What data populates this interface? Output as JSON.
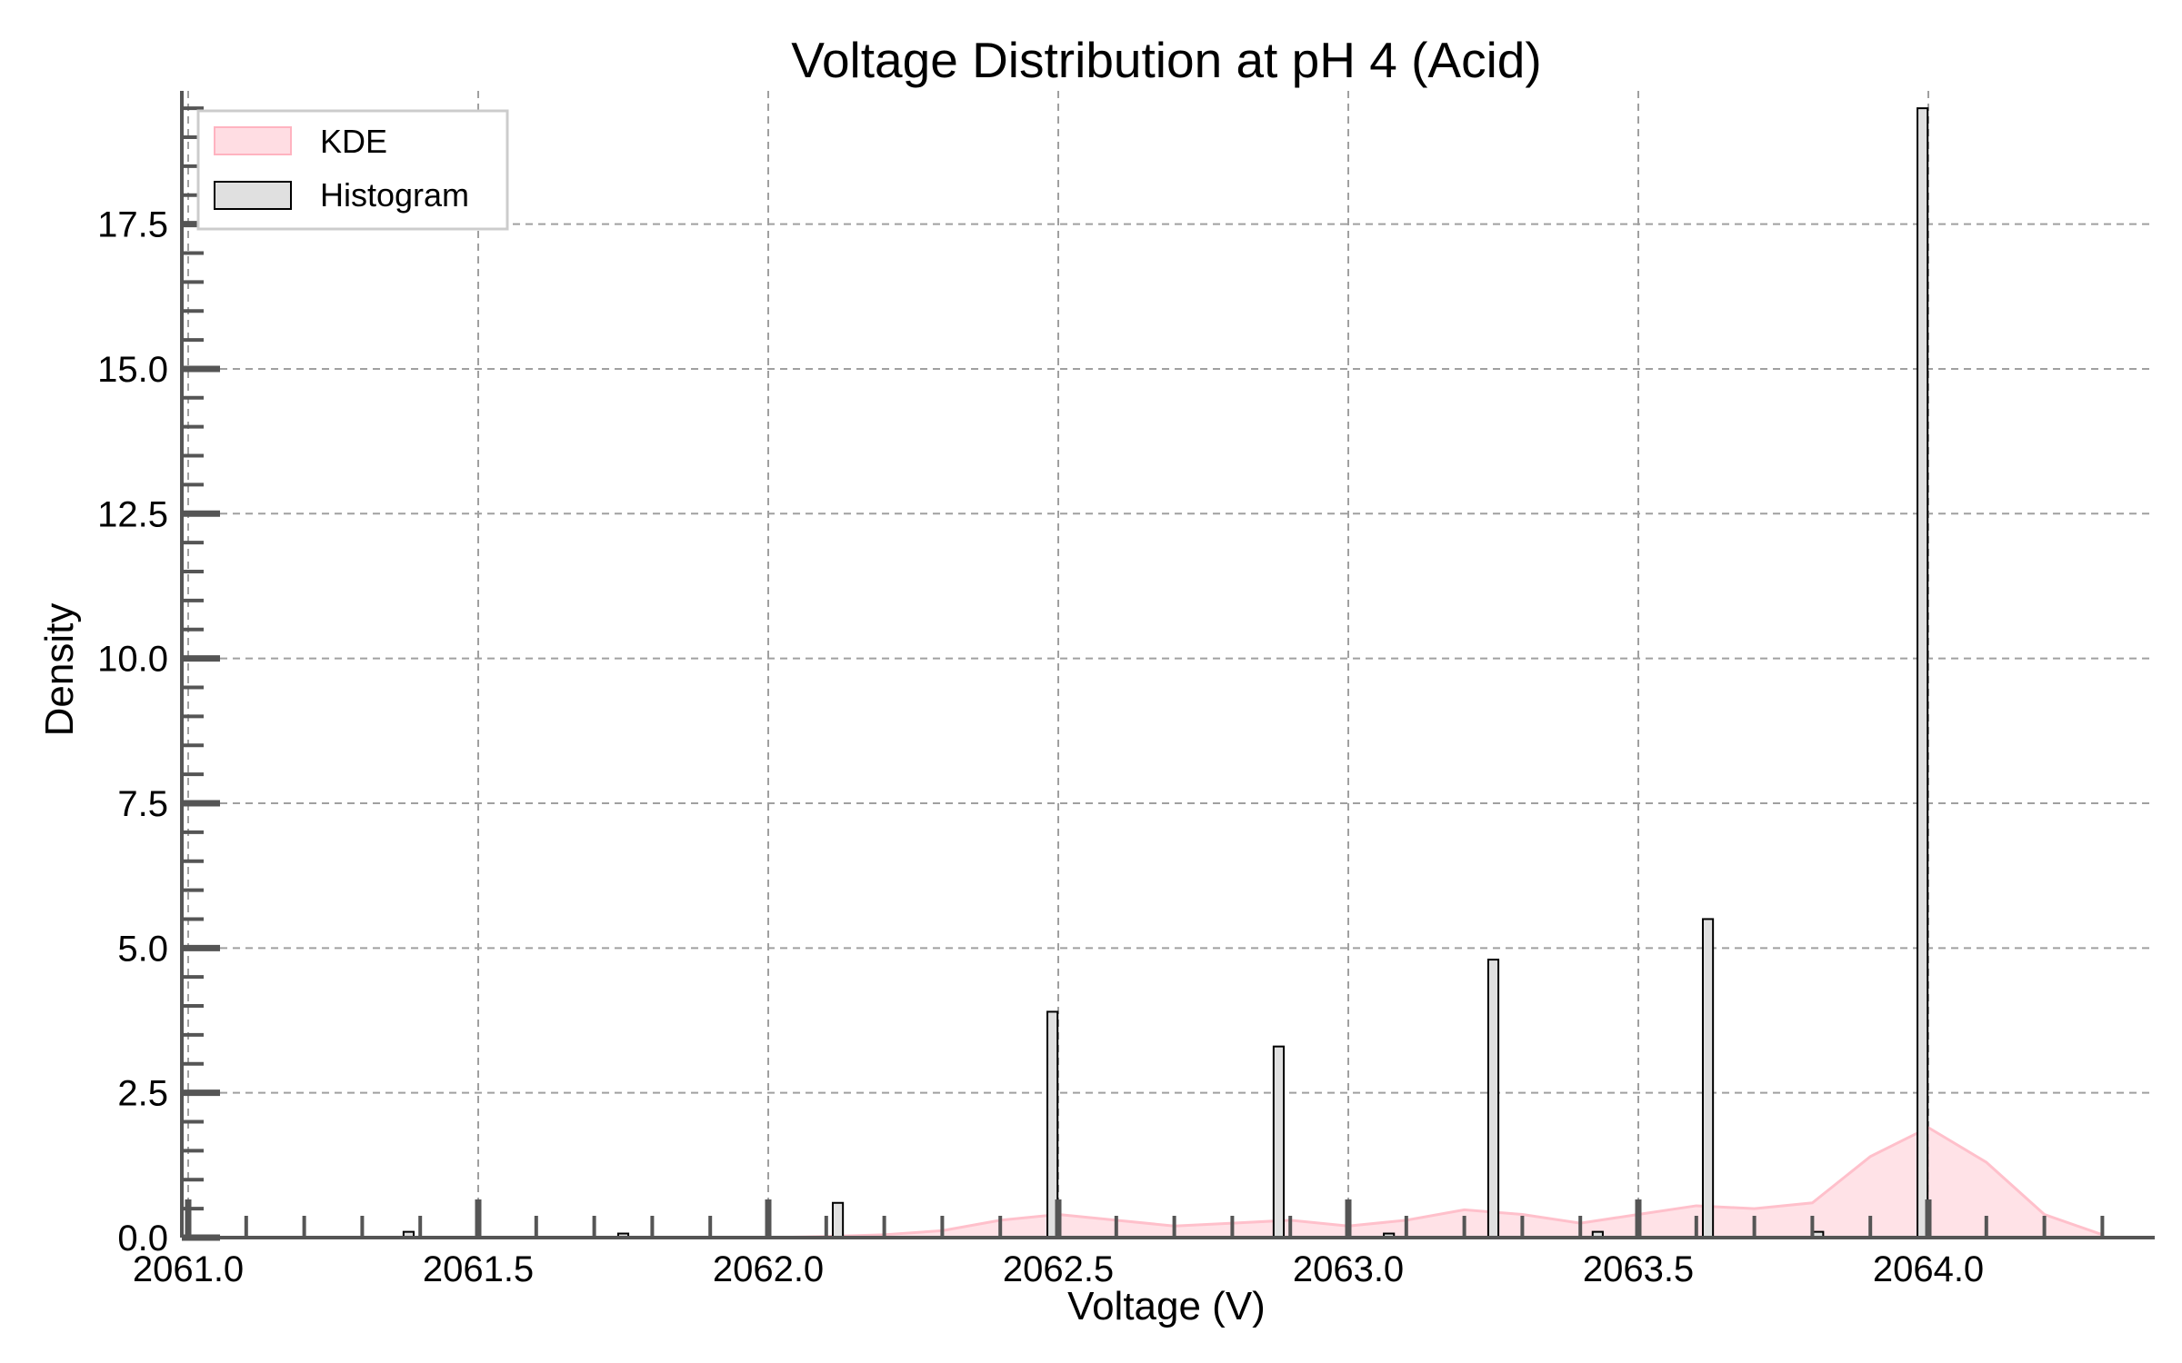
{
  "chart_data": {
    "type": "bar",
    "title": "Voltage Distribution at pH 4 (Acid)",
    "xlabel": "Voltage (V)",
    "ylabel": "Density",
    "xlim": [
      2061.0,
      2064.4
    ],
    "ylim": [
      0,
      19.8
    ],
    "xticks": [
      "2061.0",
      "2061.5",
      "2062.0",
      "2062.5",
      "2063.0",
      "2063.5",
      "2064.0"
    ],
    "yticks": [
      "0.0",
      "2.5",
      "5.0",
      "7.5",
      "10.0",
      "12.5",
      "15.0",
      "17.5"
    ],
    "grid": true,
    "legend_position": "top-left",
    "legend": [
      "KDE",
      "Histogram"
    ],
    "series": [
      {
        "name": "Histogram",
        "kind": "histogram",
        "bin_width": 0.025,
        "color": "#e0e0e0",
        "edge_color": "#000000",
        "bins": [
          {
            "x": 2061.38,
            "y": 0.1
          },
          {
            "x": 2061.75,
            "y": 0.07
          },
          {
            "x": 2062.12,
            "y": 0.6
          },
          {
            "x": 2062.49,
            "y": 3.9
          },
          {
            "x": 2062.88,
            "y": 3.3
          },
          {
            "x": 2063.07,
            "y": 0.07
          },
          {
            "x": 2063.25,
            "y": 4.8
          },
          {
            "x": 2063.43,
            "y": 0.1
          },
          {
            "x": 2063.62,
            "y": 5.5
          },
          {
            "x": 2063.81,
            "y": 0.1
          },
          {
            "x": 2063.99,
            "y": 19.5
          }
        ]
      },
      {
        "name": "KDE",
        "kind": "kde",
        "color": "#ffc0cb",
        "x": [
          2062.0,
          2062.1,
          2062.2,
          2062.3,
          2062.4,
          2062.5,
          2062.6,
          2062.7,
          2062.8,
          2062.9,
          2063.0,
          2063.1,
          2063.2,
          2063.3,
          2063.4,
          2063.5,
          2063.6,
          2063.7,
          2063.8,
          2063.9,
          2064.0,
          2064.1,
          2064.2,
          2064.3
        ],
        "y": [
          0.0,
          0.02,
          0.05,
          0.12,
          0.3,
          0.4,
          0.3,
          0.2,
          0.25,
          0.3,
          0.2,
          0.3,
          0.48,
          0.4,
          0.25,
          0.4,
          0.55,
          0.5,
          0.6,
          1.4,
          1.9,
          1.3,
          0.4,
          0.05
        ]
      }
    ]
  }
}
